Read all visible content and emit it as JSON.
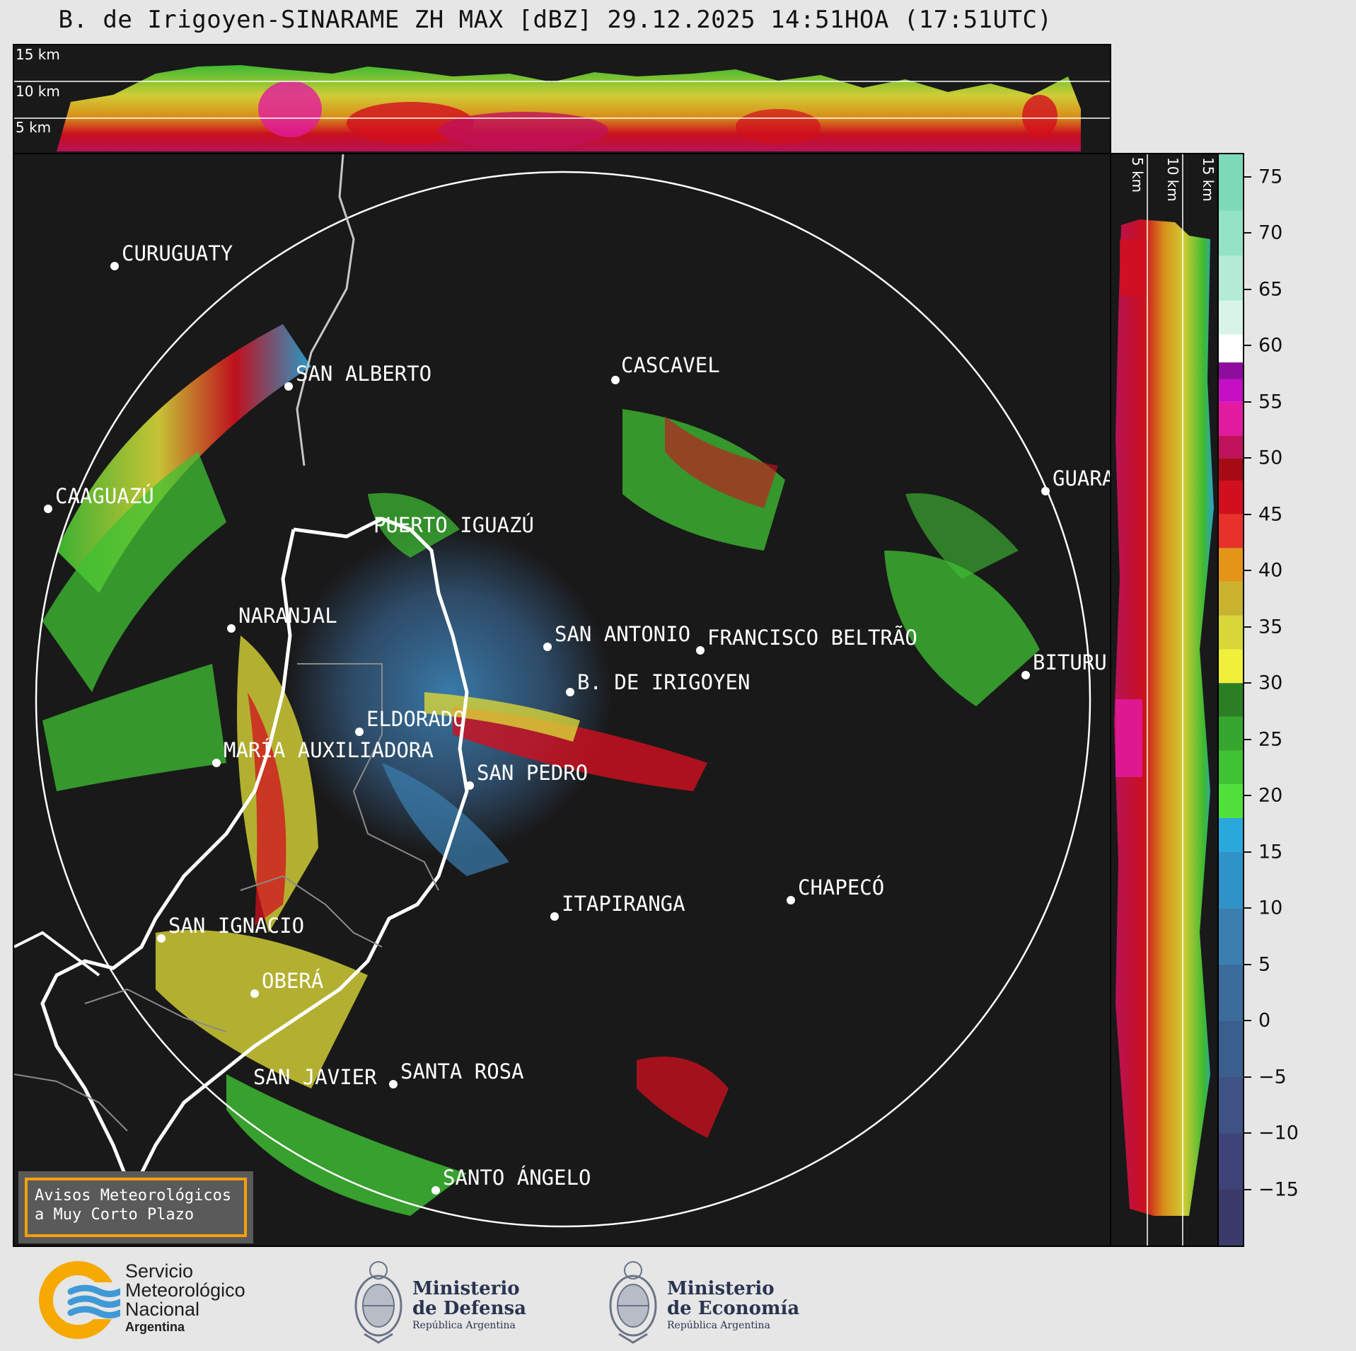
{
  "header": {
    "title": "B. de Irigoyen-SINARAME ZH MAX [dBZ] 29.12.2025 14:51HOA (17:51UTC)"
  },
  "altitude_labels": {
    "km5": "5 km",
    "km10": "10 km",
    "km15": "15 km"
  },
  "map": {
    "cities": [
      {
        "name": "CURUGUATY"
      },
      {
        "name": "SAN ALBERTO"
      },
      {
        "name": "CAAGUAZÚ"
      },
      {
        "name": "PUERTO IGUAZÚ"
      },
      {
        "name": "CASCAVEL"
      },
      {
        "name": "GUARA"
      },
      {
        "name": "NARANJAL"
      },
      {
        "name": "SAN ANTONIO"
      },
      {
        "name": "FRANCISCO BELTRÃO"
      },
      {
        "name": "BITURU"
      },
      {
        "name": "B. DE IRIGOYEN"
      },
      {
        "name": "ELDORADO"
      },
      {
        "name": "MARÍA AUXILIADORA"
      },
      {
        "name": "SAN PEDRO"
      },
      {
        "name": "CHAPECÓ"
      },
      {
        "name": "ITAPIRANGA"
      },
      {
        "name": "SAN IGNACIO"
      },
      {
        "name": "OBERÁ"
      },
      {
        "name": "SAN JAVIER"
      },
      {
        "name": "SANTA ROSA"
      },
      {
        "name": "SANTO ÁNGELO"
      }
    ]
  },
  "colorbar": {
    "unit": "dBZ",
    "range": [
      -20,
      77
    ],
    "ticks": [
      "75",
      "70",
      "65",
      "60",
      "55",
      "50",
      "45",
      "40",
      "35",
      "30",
      "25",
      "20",
      "15",
      "10",
      "5",
      "0",
      "−5",
      "−10",
      "−15"
    ],
    "tick_values": [
      75,
      70,
      65,
      60,
      55,
      50,
      45,
      40,
      35,
      30,
      25,
      20,
      15,
      10,
      5,
      0,
      -5,
      -10,
      -15
    ],
    "stops": [
      {
        "from": -20,
        "color": "#3b3a6a"
      },
      {
        "from": -15,
        "color": "#3e4477"
      },
      {
        "from": -10,
        "color": "#3e5283"
      },
      {
        "from": -5,
        "color": "#3a5f8f"
      },
      {
        "from": 0,
        "color": "#3b6c9b"
      },
      {
        "from": 5,
        "color": "#3a7fb0"
      },
      {
        "from": 10,
        "color": "#2f93c8"
      },
      {
        "from": 15,
        "color": "#29a8dc"
      },
      {
        "from": 18,
        "color": "#4fe03a"
      },
      {
        "from": 21,
        "color": "#3fc233"
      },
      {
        "from": 24,
        "color": "#36a52d"
      },
      {
        "from": 27,
        "color": "#2a7f24"
      },
      {
        "from": 30,
        "color": "#f0f03a"
      },
      {
        "from": 33,
        "color": "#d9d637"
      },
      {
        "from": 36,
        "color": "#c9b32e"
      },
      {
        "from": 39,
        "color": "#e3951a"
      },
      {
        "from": 42,
        "color": "#e6322a"
      },
      {
        "from": 45,
        "color": "#d20f1e"
      },
      {
        "from": 48,
        "color": "#a50b15"
      },
      {
        "from": 50,
        "color": "#c0125a"
      },
      {
        "from": 52,
        "color": "#e21aa0"
      },
      {
        "from": 55,
        "color": "#c40fc4"
      },
      {
        "from": 57,
        "color": "#8e0c9e"
      },
      {
        "from": 58.5,
        "color": "#ffffff"
      },
      {
        "from": 61,
        "color": "#d8f4e8"
      },
      {
        "from": 64,
        "color": "#b3ebd6"
      },
      {
        "from": 68,
        "color": "#94e3c6"
      },
      {
        "from": 72,
        "color": "#7ed9b9"
      }
    ]
  },
  "warning_box": {
    "line1": "Avisos Meteorológicos",
    "line2": "a Muy Corto Plazo"
  },
  "footer": {
    "smn": {
      "line1": "Servicio",
      "line2": "Meteorológico",
      "line3": "Nacional",
      "line4": "Argentina"
    },
    "defensa": {
      "line1": "Ministerio",
      "line2": "de Defensa",
      "line3": "República Argentina"
    },
    "economia": {
      "line1": "Ministerio",
      "line2": "de Economía",
      "line3": "República Argentina"
    }
  },
  "colors": {
    "panel_bg": "#191919",
    "range_ring": "#ffffff",
    "border_line": "#ffffff",
    "warning_border": "#f5a00c"
  }
}
